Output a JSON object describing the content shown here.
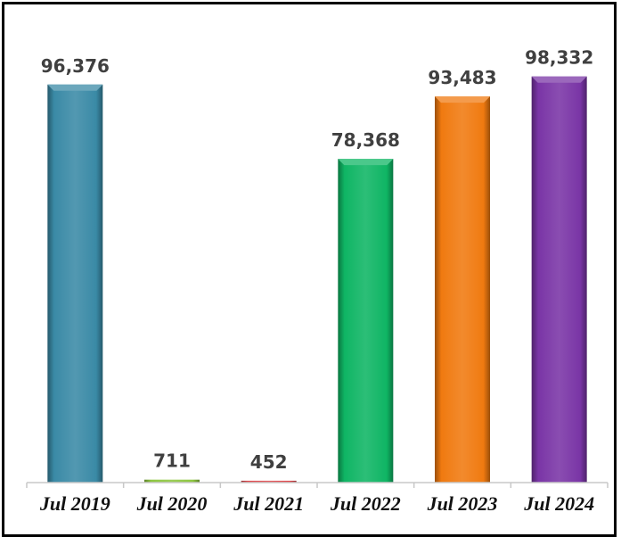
{
  "chart_data": {
    "type": "bar",
    "categories": [
      "Jul 2019",
      "Jul 2020",
      "Jul 2021",
      "Jul 2022",
      "Jul 2023",
      "Jul 2024"
    ],
    "values": [
      96376,
      711,
      452,
      78368,
      93483,
      98332
    ],
    "value_labels": [
      "96,376",
      "711",
      "452",
      "78,368",
      "93,483",
      "98,332"
    ],
    "colors": [
      "#3a8aa6",
      "#8dc63f",
      "#e0464a",
      "#0fb564",
      "#f07a10",
      "#7a35a6"
    ],
    "title": "",
    "xlabel": "",
    "ylabel": "",
    "ylim": [
      0,
      100000
    ],
    "grid": false,
    "legend": "none"
  }
}
